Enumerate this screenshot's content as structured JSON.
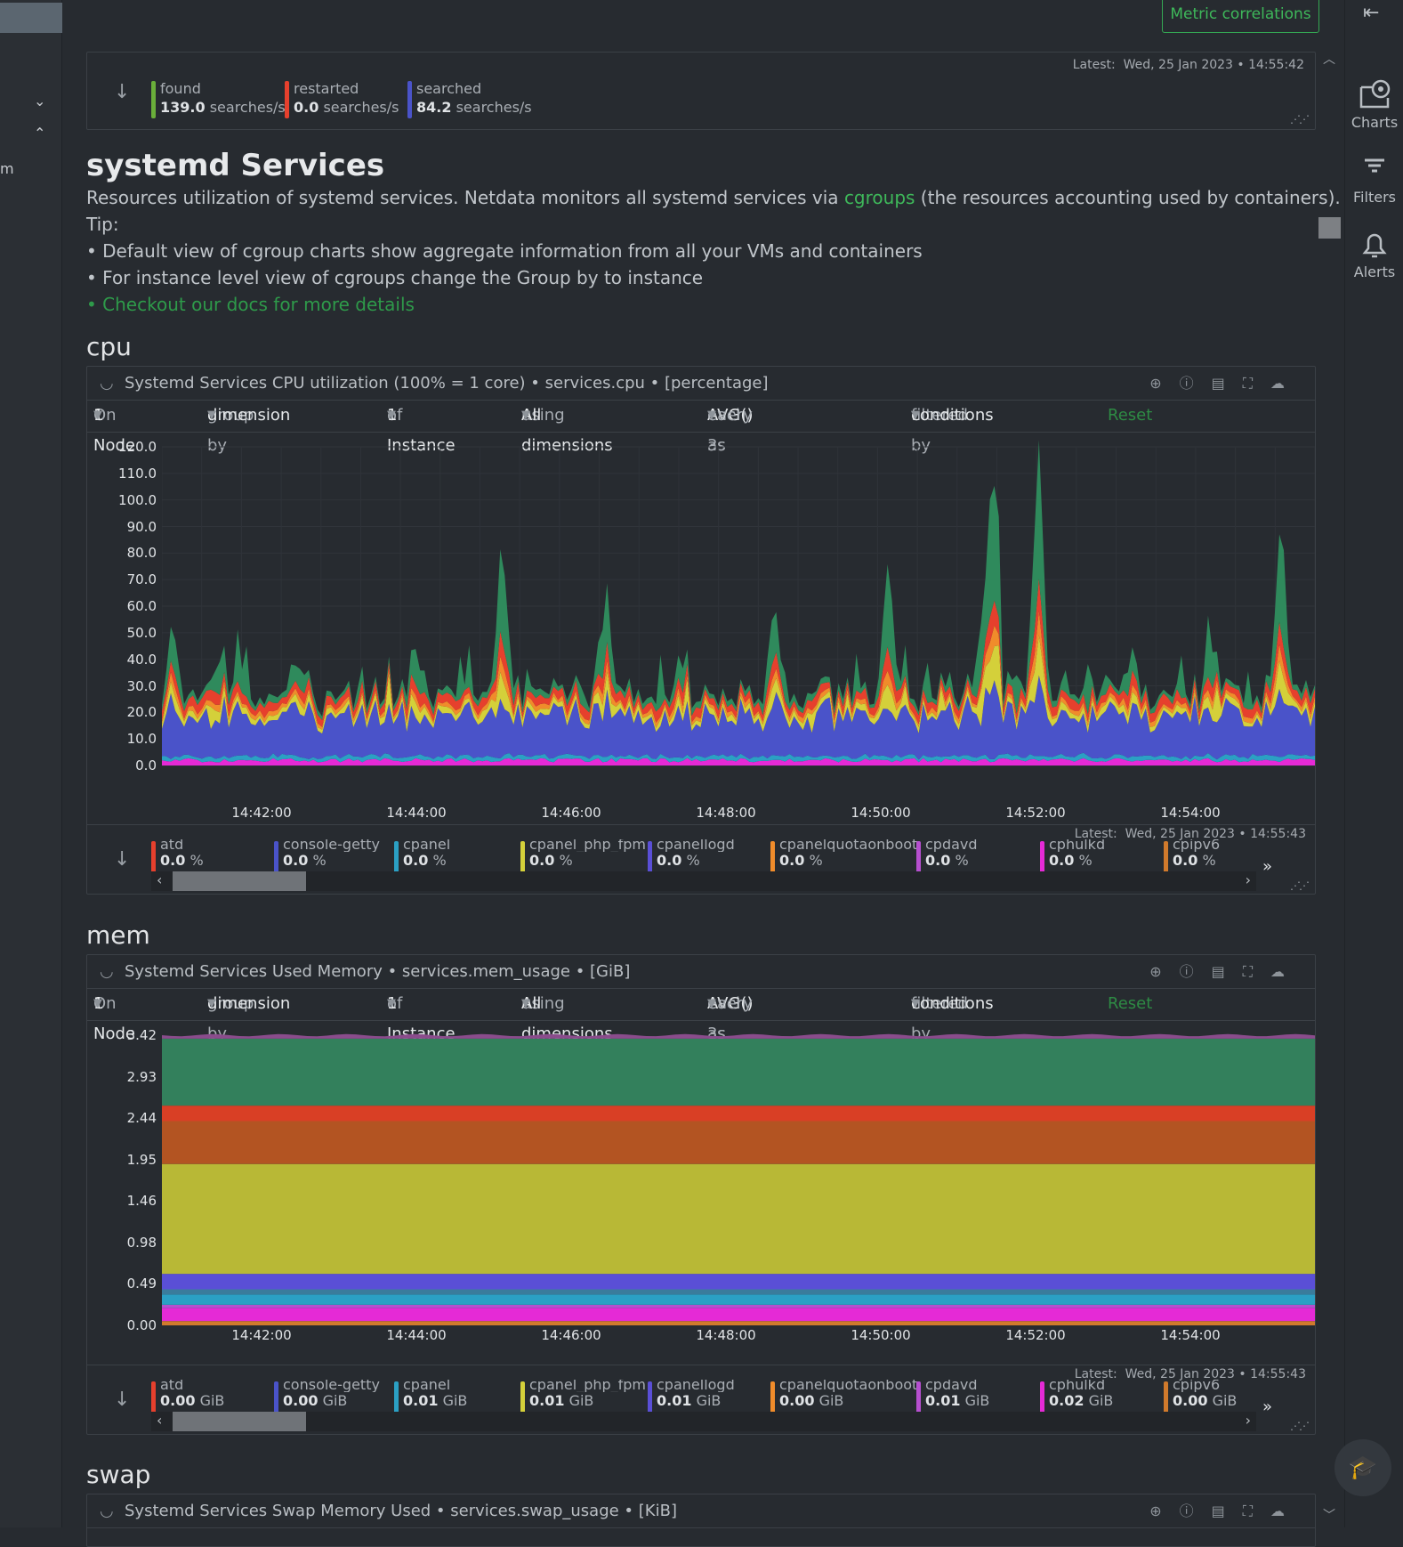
{
  "topbar": {
    "metric_correlations": "Metric correlations"
  },
  "right_nav": {
    "charts": "Charts",
    "filters": "Filters",
    "alerts": "Alerts"
  },
  "left_nav": {
    "m": "m"
  },
  "top_card": {
    "latest_label": "Latest:",
    "latest_value": "Wed, 25 Jan 2023 • 14:55:42",
    "items": [
      {
        "name": "found",
        "value": "139.0",
        "unit": "searches/s",
        "color": "#6aae3a"
      },
      {
        "name": "restarted",
        "value": "0.0",
        "unit": "searches/s",
        "color": "#e6402d"
      },
      {
        "name": "searched",
        "value": "84.2",
        "unit": "searches/s",
        "color": "#4a53c9"
      }
    ]
  },
  "section": {
    "title": "systemd Services",
    "desc_pre": "Resources utilization of systemd services. Netdata monitors all systemd services via ",
    "desc_link": "cgroups",
    "desc_post": " (the resources accounting used by containers).",
    "tip": "Tip:",
    "bullet1": "• Default view of cgroup charts show aggregate information from all your VMs and containers",
    "bullet2": "• For instance level view of cgroups change the Group by to instance",
    "bullet3": "• Checkout our docs for more details"
  },
  "controls": {
    "on": "On",
    "node": "1 Node",
    "group_by": "group by",
    "dimension": "dimension",
    "of": "of",
    "instance": "1 Instance",
    "using": "using",
    "all_dims": "All dimensions",
    "each_as": "each as",
    "avg": "AVG()",
    "every": "every 3s",
    "filtered_by": "filtered by",
    "conditions": "conditions",
    "reset": "Reset"
  },
  "cpu": {
    "section_label": "cpu",
    "title": "Systemd Services CPU utilization (100% = 1 core) • services.cpu • [percentage]",
    "latest_label": "Latest:",
    "latest_value": "Wed, 25 Jan 2023 • 14:55:43",
    "unit": "%",
    "dims": [
      {
        "name": "atd",
        "value": "0.0",
        "color": "#e6402d"
      },
      {
        "name": "console-getty",
        "value": "0.0",
        "color": "#4a53c9"
      },
      {
        "name": "cpanel",
        "value": "0.0",
        "color": "#2ba0c4"
      },
      {
        "name": "cpanel_php_fpm",
        "value": "0.0",
        "color": "#d4d03a"
      },
      {
        "name": "cpanellogd",
        "value": "0.0",
        "color": "#5a4fd6"
      },
      {
        "name": "cpanelquotaonboot",
        "value": "0.0",
        "color": "#f08c2b"
      },
      {
        "name": "cpdavd",
        "value": "0.0",
        "color": "#b64fcf"
      },
      {
        "name": "cphulkd",
        "value": "0.0",
        "color": "#e52ad6"
      },
      {
        "name": "cpipv6",
        "value": "0.0",
        "color": "#d07a2c"
      }
    ]
  },
  "mem": {
    "section_label": "mem",
    "title": "Systemd Services Used Memory • services.mem_usage • [GiB]",
    "latest_label": "Latest:",
    "latest_value": "Wed, 25 Jan 2023 • 14:55:43",
    "unit": "GiB",
    "dims": [
      {
        "name": "atd",
        "value": "0.00",
        "color": "#e6402d"
      },
      {
        "name": "console-getty",
        "value": "0.00",
        "color": "#4a53c9"
      },
      {
        "name": "cpanel",
        "value": "0.01",
        "color": "#2ba0c4"
      },
      {
        "name": "cpanel_php_fpm",
        "value": "0.01",
        "color": "#d4d03a"
      },
      {
        "name": "cpanellogd",
        "value": "0.01",
        "color": "#5a4fd6"
      },
      {
        "name": "cpanelquotaonboot",
        "value": "0.00",
        "color": "#f08c2b"
      },
      {
        "name": "cpdavd",
        "value": "0.01",
        "color": "#b64fcf"
      },
      {
        "name": "cphulkd",
        "value": "0.02",
        "color": "#e52ad6"
      },
      {
        "name": "cpipv6",
        "value": "0.00",
        "color": "#d07a2c"
      }
    ]
  },
  "swap": {
    "section_label": "swap",
    "title": "Systemd Services Swap Memory Used • services.swap_usage • [KiB]"
  },
  "chart_data": [
    {
      "type": "area",
      "title": "Systemd Services CPU utilization (100% = 1 core) • services.cpu • [percentage]",
      "xlabel": "",
      "ylabel": "",
      "ylim": [
        0,
        120
      ],
      "y_ticks": [
        "120.0",
        "110.0",
        "100.0",
        "90.0",
        "80.0",
        "70.0",
        "60.0",
        "50.0",
        "40.0",
        "30.0",
        "20.0",
        "10.0",
        "0.0"
      ],
      "x_ticks": [
        "14:42:00",
        "14:44:00",
        "14:46:00",
        "14:48:00",
        "14:50:00",
        "14:52:00",
        "14:54:00"
      ],
      "stacked": true,
      "layers": [
        {
          "color": "#e52ad6",
          "base": 2
        },
        {
          "color": "#2ba0c4",
          "base": 1.5
        },
        {
          "color": "#4a53c9",
          "base": 13
        },
        {
          "color": "#d4d03a",
          "base": 2
        },
        {
          "color": "#f08c2b",
          "base": 1.5
        },
        {
          "color": "#e6402d",
          "base": 3
        },
        {
          "color": "#2f8a5c",
          "base": 2
        }
      ],
      "spikes": [
        {
          "x": 0.01,
          "peak": 52
        },
        {
          "x": 0.05,
          "peak": 45
        },
        {
          "x": 0.12,
          "peak": 38
        },
        {
          "x": 0.22,
          "peak": 46
        },
        {
          "x": 0.295,
          "peak": 90
        },
        {
          "x": 0.385,
          "peak": 68
        },
        {
          "x": 0.53,
          "peak": 58
        },
        {
          "x": 0.63,
          "peak": 82
        },
        {
          "x": 0.72,
          "peak": 120
        },
        {
          "x": 0.76,
          "peak": 122
        },
        {
          "x": 0.97,
          "peak": 87
        },
        {
          "x": 0.91,
          "peak": 45
        },
        {
          "x": 0.45,
          "peak": 40
        },
        {
          "x": 0.84,
          "peak": 42
        }
      ]
    },
    {
      "type": "area",
      "title": "Systemd Services Used Memory • services.mem_usage • [GiB]",
      "ylim": [
        0,
        3.42
      ],
      "y_ticks": [
        "3.42",
        "2.93",
        "2.44",
        "1.95",
        "1.46",
        "0.98",
        "0.49",
        "0.00"
      ],
      "x_ticks": [
        "14:42:00",
        "14:44:00",
        "14:46:00",
        "14:48:00",
        "14:50:00",
        "14:52:00",
        "14:54:00"
      ],
      "stacked": true,
      "layers": [
        {
          "color": "#d07a2c",
          "value": 0.05
        },
        {
          "color": "#e52ad6",
          "value": 0.15
        },
        {
          "color": "#b64fcf",
          "value": 0.04
        },
        {
          "color": "#2ba0c4",
          "value": 0.12
        },
        {
          "color": "#3a7c9c",
          "value": 0.06
        },
        {
          "color": "#5a4fd6",
          "value": 0.18
        },
        {
          "color": "#b8b836",
          "value": 1.28
        },
        {
          "color": "#b35422",
          "value": 0.5
        },
        {
          "color": "#d93f25",
          "value": 0.18
        },
        {
          "color": "#33805c",
          "value": 0.78
        },
        {
          "color": "#8a4c8c",
          "value": 0.04
        }
      ]
    }
  ]
}
